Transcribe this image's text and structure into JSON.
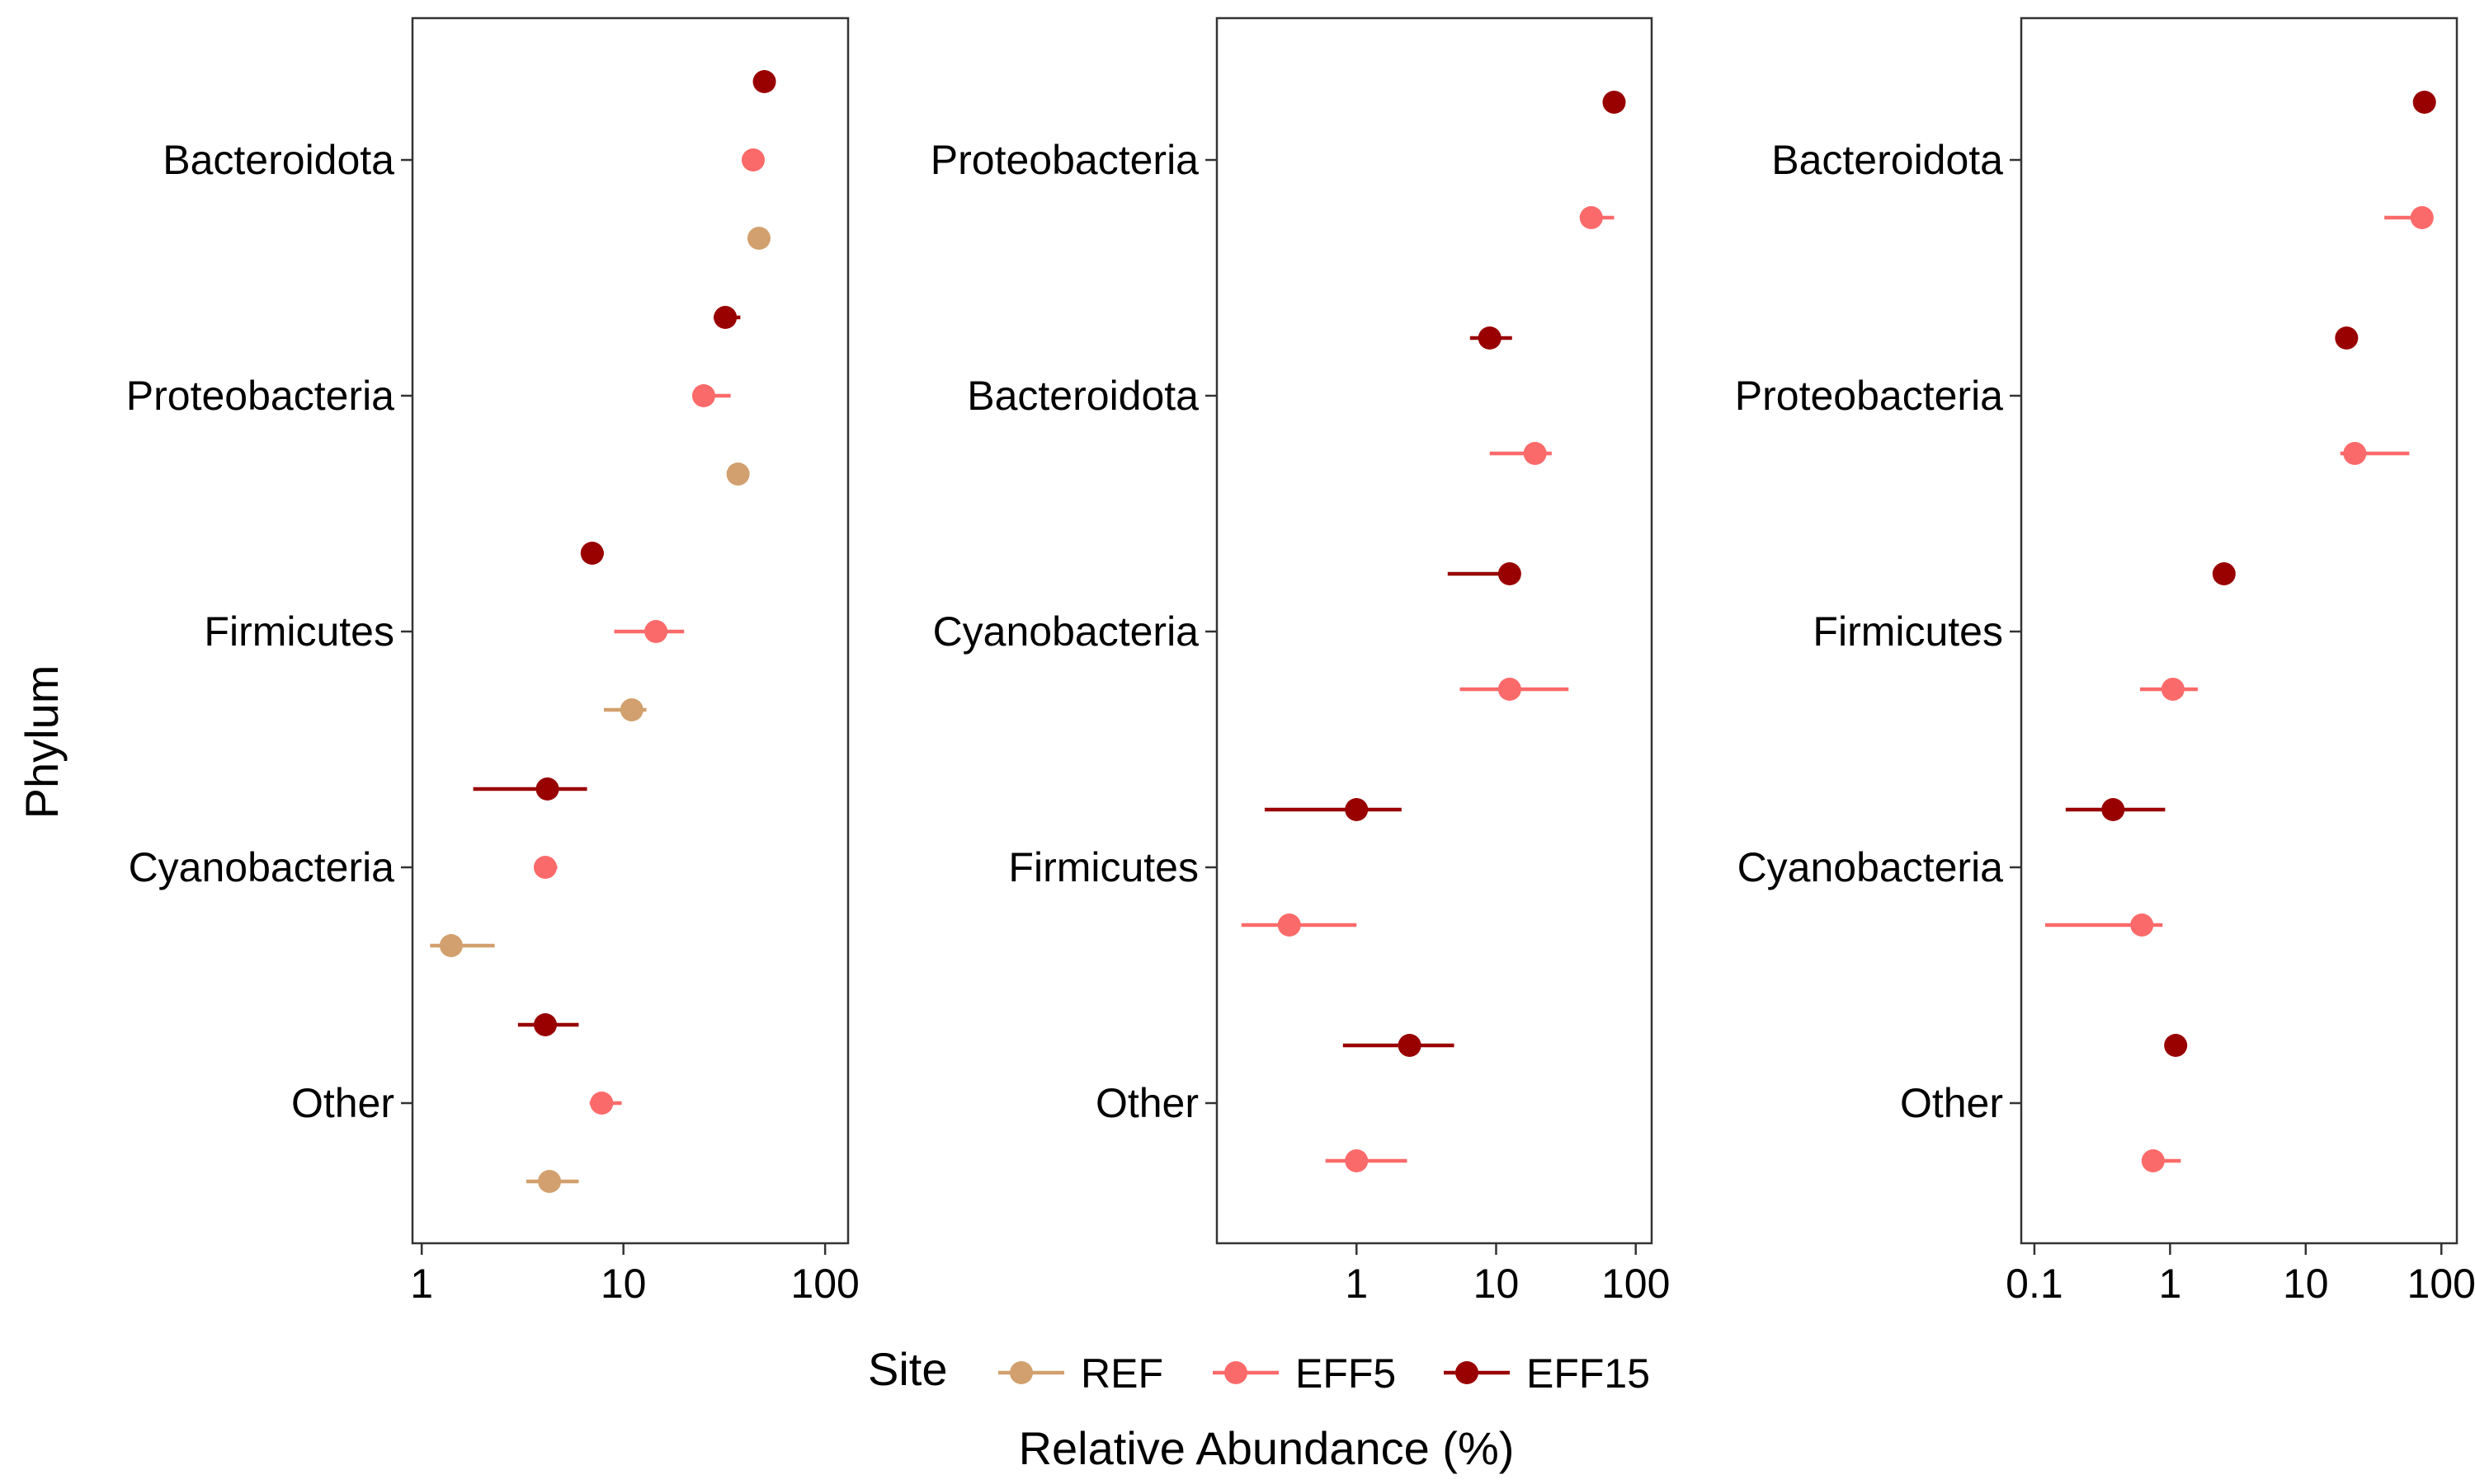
{
  "colors": {
    "REF": "#d2a06e",
    "EFF5": "#fb6a6a",
    "EFF15": "#990000"
  },
  "legend": {
    "title": "Site",
    "items": [
      {
        "label": "REF",
        "color": "#d2a06e"
      },
      {
        "label": "EFF5",
        "color": "#fb6a6a"
      },
      {
        "label": "EFF15",
        "color": "#990000"
      }
    ]
  },
  "xlabel": "Relative Abundance (%)",
  "ylabel": "Phylum",
  "chart_data": [
    {
      "type": "scatter",
      "x_scale": "log",
      "xlim": [
        0.9,
        130
      ],
      "x_ticks": [
        "1",
        "10",
        "100"
      ],
      "x_tick_values": [
        1,
        10,
        100
      ],
      "categories": [
        "Bacteroidota",
        "Proteobacteria",
        "Firmicutes",
        "Cyanobacteria",
        "Other"
      ],
      "series": [
        {
          "name": "EFF15",
          "values": [
            50,
            32,
            7,
            4.2,
            4.1
          ],
          "lower": [
            50,
            28,
            6.3,
            1.8,
            3.0
          ],
          "upper": [
            50,
            38,
            8.0,
            6.6,
            6.0
          ]
        },
        {
          "name": "EFF5",
          "values": [
            44,
            25,
            14.5,
            4.1,
            7.8
          ],
          "lower": [
            44,
            22,
            9.0,
            3.6,
            6.8
          ],
          "upper": [
            44,
            34,
            20,
            4.7,
            9.8
          ]
        },
        {
          "name": "REF",
          "values": [
            47,
            37,
            11,
            1.4,
            4.3
          ],
          "lower": [
            47,
            35,
            8.0,
            1.1,
            3.3
          ],
          "upper": [
            47,
            39,
            13,
            2.3,
            6.0
          ]
        }
      ]
    },
    {
      "type": "scatter",
      "x_scale": "log",
      "xlim": [
        0.1,
        130
      ],
      "x_ticks": [
        "1",
        "10",
        "100"
      ],
      "x_tick_values": [
        1,
        10,
        100
      ],
      "categories": [
        "Proteobacteria",
        "Bacteroidota",
        "Cyanobacteria",
        "Firmicutes",
        "Other"
      ],
      "series": [
        {
          "name": "EFF15",
          "values": [
            70,
            9.0,
            12.5,
            1.0,
            2.4
          ],
          "lower": [
            70,
            6.5,
            4.5,
            0.22,
            0.8
          ],
          "upper": [
            70,
            13,
            12.5,
            2.1,
            5.0
          ]
        },
        {
          "name": "EFF5",
          "values": [
            48,
            19,
            12.5,
            0.33,
            1.0
          ],
          "lower": [
            48,
            9.0,
            5.5,
            0.15,
            0.6
          ],
          "upper": [
            70,
            25,
            33,
            1.0,
            2.3
          ]
        }
      ]
    },
    {
      "type": "scatter",
      "x_scale": "log",
      "xlim": [
        0.08,
        130
      ],
      "x_ticks": [
        "0.1",
        "1",
        "10",
        "100"
      ],
      "x_tick_values": [
        0.1,
        1,
        10,
        100
      ],
      "categories": [
        "Bacteroidota",
        "Proteobacteria",
        "Firmicutes",
        "Cyanobacteria",
        "Other"
      ],
      "series": [
        {
          "name": "EFF15",
          "values": [
            75,
            20,
            2.5,
            0.38,
            1.1
          ],
          "lower": [
            75,
            20,
            2.5,
            0.17,
            1.1
          ],
          "upper": [
            75,
            20,
            2.5,
            0.92,
            1.2
          ]
        },
        {
          "name": "EFF5",
          "values": [
            72,
            23,
            1.05,
            0.62,
            0.75
          ],
          "lower": [
            38,
            18,
            0.6,
            0.12,
            0.62
          ],
          "upper": [
            72,
            58,
            1.6,
            0.88,
            1.2
          ]
        }
      ]
    }
  ]
}
